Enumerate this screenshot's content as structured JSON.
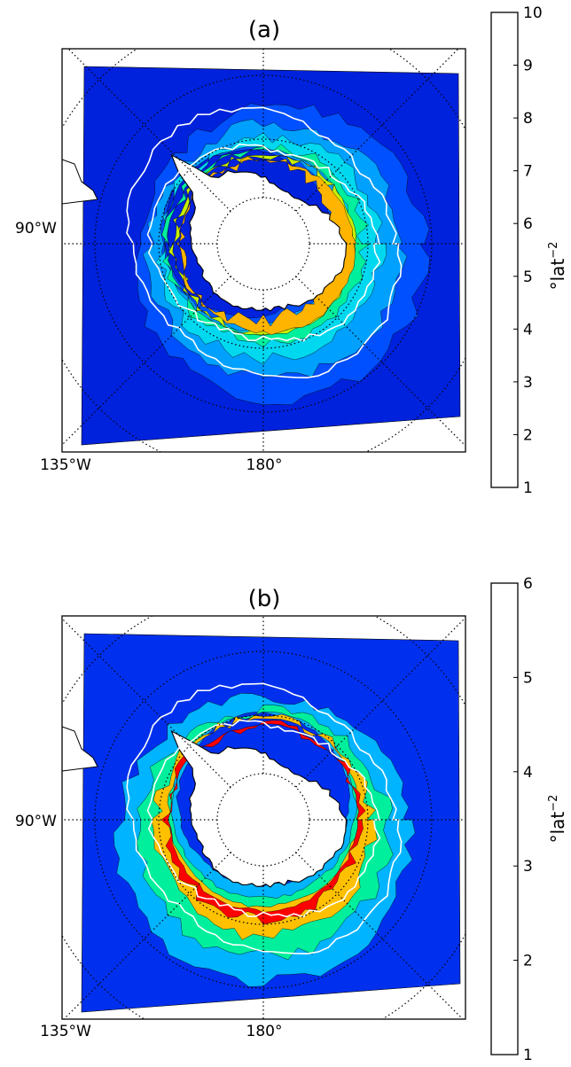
{
  "panels": [
    {
      "id": "a",
      "title": "(a)",
      "lon_labels": {
        "left": "90°W",
        "bottom_left": "135°W",
        "bottom": "180°"
      },
      "colorbar": {
        "label": "°lat",
        "label_exponent": "−2",
        "ticks": [
          "1",
          "2",
          "3",
          "4",
          "5",
          "6",
          "7",
          "8",
          "9",
          "10"
        ],
        "min": 1,
        "max": 10,
        "colors": [
          "#0022dd",
          "#0050ff",
          "#00a0ff",
          "#00d8f0",
          "#00ef9c",
          "#00e070",
          "#c8f000",
          "#ffb400",
          "#ff5a00",
          "#ee0000"
        ]
      },
      "levels": [
        {
          "value": 1.5,
          "color": "#0050ff"
        },
        {
          "value": 2.5,
          "color": "#00a0ff"
        },
        {
          "value": 3.5,
          "color": "#00d8f0"
        },
        {
          "value": 4.5,
          "color": "#00ef9c"
        },
        {
          "value": 5.5,
          "color": "#c8f000"
        },
        {
          "value": 6.5,
          "color": "#ffb400"
        }
      ]
    },
    {
      "id": "b",
      "title": "(b)",
      "lon_labels": {
        "left": "90°W",
        "bottom_left": "135°W",
        "bottom": "180°"
      },
      "colorbar": {
        "label": "°lat",
        "label_exponent": "−2",
        "ticks": [
          "1",
          "2",
          "3",
          "4",
          "5",
          "6"
        ],
        "min": 1,
        "max": 6,
        "colors": [
          "#0030ee",
          "#00b4ff",
          "#00ef9c",
          "#ffc000",
          "#ff0000"
        ]
      },
      "levels": [
        {
          "value": 1.5,
          "color": "#00b4ff"
        },
        {
          "value": 2.5,
          "color": "#00ef9c"
        },
        {
          "value": 3.5,
          "color": "#ffc000"
        },
        {
          "value": 4.3,
          "color": "#ff0000"
        }
      ]
    }
  ]
}
